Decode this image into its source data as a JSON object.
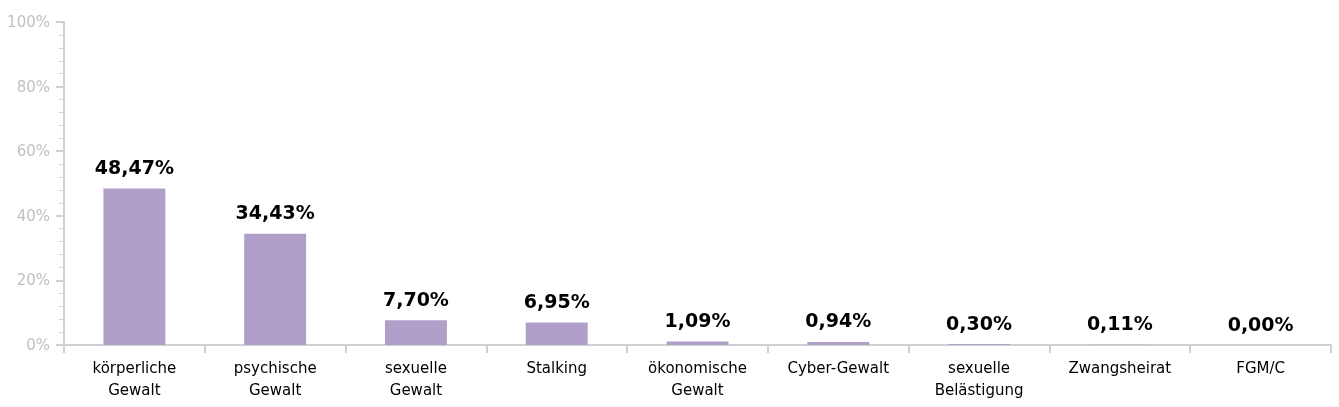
{
  "chart_data": {
    "type": "bar",
    "categories": [
      "körperliche Gewalt",
      "psychische Gewalt",
      "sexuelle Gewalt",
      "Stalking",
      "ökonomische Gewalt",
      "Cyber-Gewalt",
      "sexuelle Belästigung",
      "Zwangsheirat",
      "FGM/C"
    ],
    "values": [
      48.47,
      34.43,
      7.7,
      6.95,
      1.09,
      0.94,
      0.3,
      0.11,
      0.0
    ],
    "value_labels": [
      "48,47%",
      "34,43%",
      "7,70%",
      "6,95%",
      "1,09%",
      "0,94%",
      "0,30%",
      "0,11%",
      "0,00%"
    ],
    "color": "#b09fc8",
    "ylim": [
      0,
      100
    ],
    "yticks": [
      {
        "value": 0,
        "label": "0%"
      },
      {
        "value": 20,
        "label": "20%"
      },
      {
        "value": 40,
        "label": "40%"
      },
      {
        "value": 60,
        "label": "60%"
      },
      {
        "value": 80,
        "label": "80%"
      },
      {
        "value": 100,
        "label": "100%"
      }
    ],
    "grid": false
  }
}
